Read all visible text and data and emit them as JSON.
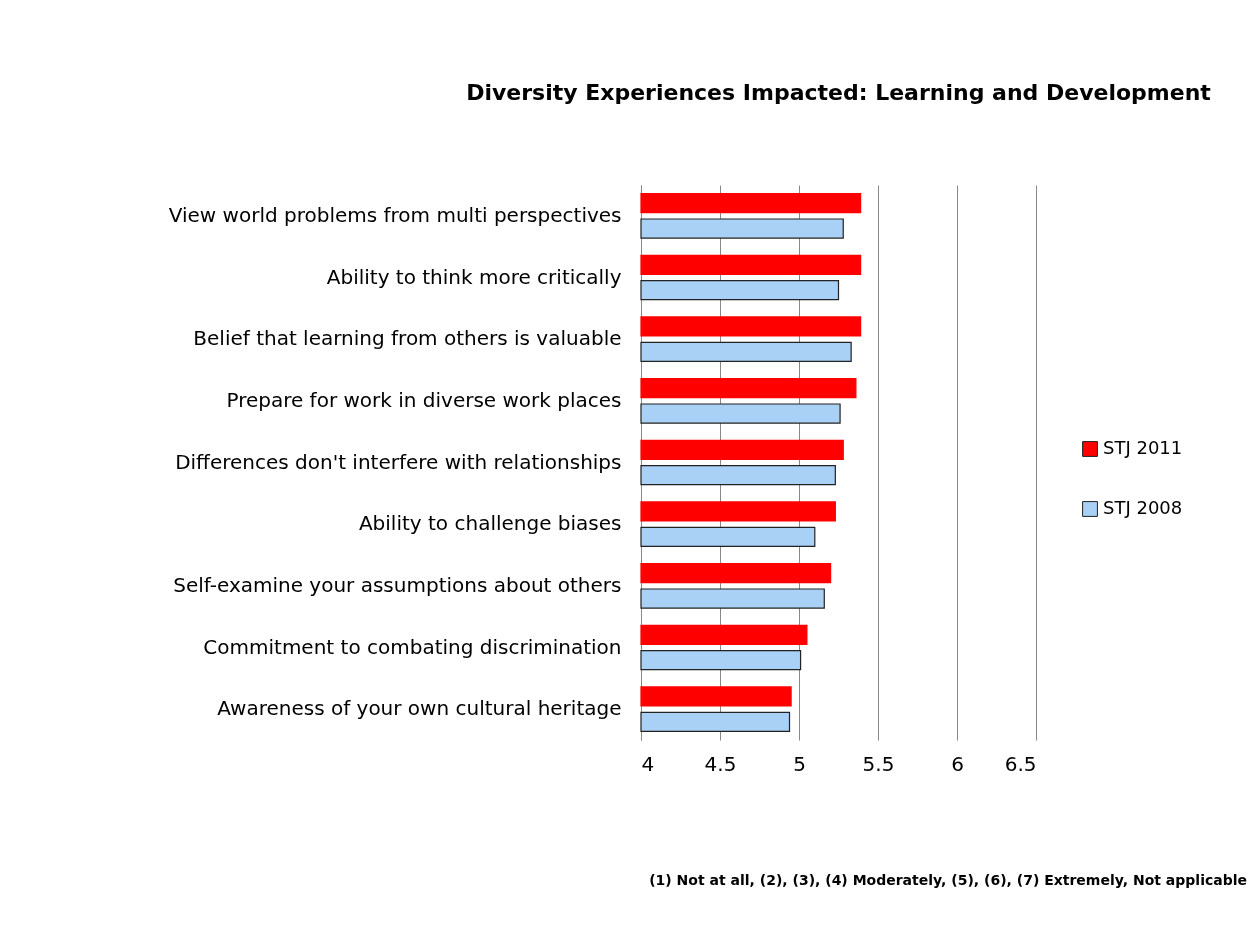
{
  "chart_data": {
    "type": "bar",
    "orientation": "horizontal",
    "title": "Diversity Experiences Impacted: Learning and Development",
    "categories": [
      "View world problems from multi perspectives",
      "Ability to think more critically",
      "Belief that learning from others is valuable",
      "Prepare for work in diverse work places",
      "Differences don't interfere with relationships",
      "Ability to challenge biases",
      "Self-examine your assumptions about others",
      "Commitment to combating discrimination",
      "Awareness of your own cultural heritage"
    ],
    "series": [
      {
        "name": "STJ 2011",
        "color": "#ff0000",
        "values": [
          5.39,
          5.39,
          5.39,
          5.36,
          5.28,
          5.23,
          5.2,
          5.05,
          4.95
        ]
      },
      {
        "name": "STJ 2008",
        "color": "#a9d0f5",
        "values": [
          5.28,
          5.25,
          5.33,
          5.26,
          5.23,
          5.1,
          5.16,
          5.01,
          4.94
        ]
      }
    ],
    "xlim": [
      4,
      6.5
    ],
    "xticks": [
      4,
      4.5,
      5,
      5.5,
      6,
      6.5
    ],
    "grid": "x",
    "legend": "right",
    "annotations": [
      "(1) Not at all, (2), (3), (4) Moderately, (5), (6), (7) Extremely, Not applicable"
    ]
  }
}
